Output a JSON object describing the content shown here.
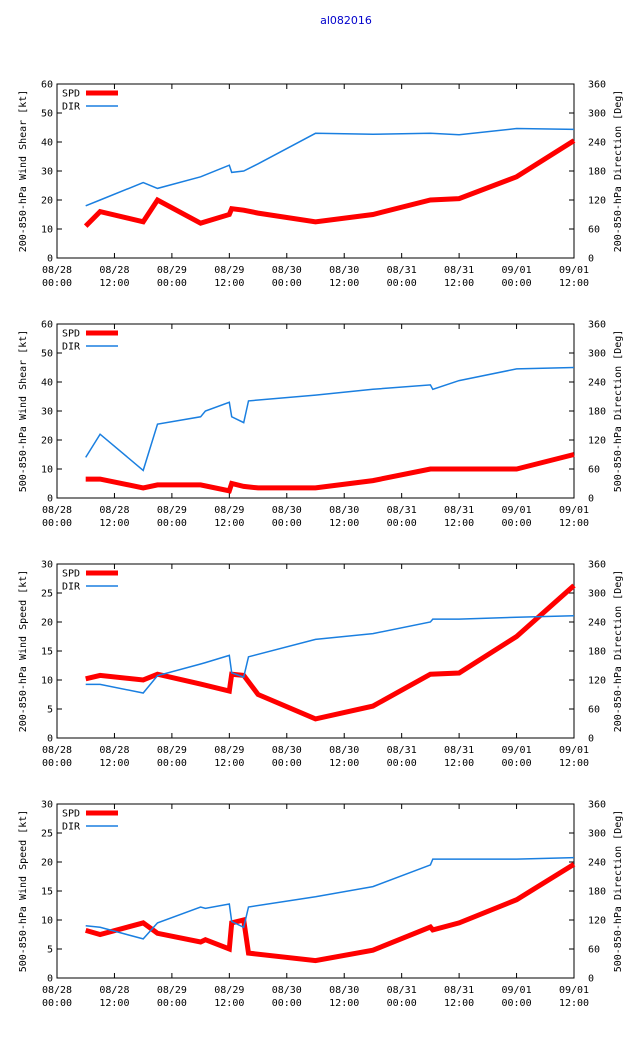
{
  "title": "al082016",
  "x_tick_labels": [
    {
      "date": "08/28",
      "time": "00:00"
    },
    {
      "date": "08/28",
      "time": "12:00"
    },
    {
      "date": "08/29",
      "time": "00:00"
    },
    {
      "date": "08/29",
      "time": "12:00"
    },
    {
      "date": "08/30",
      "time": "00:00"
    },
    {
      "date": "08/30",
      "time": "12:00"
    },
    {
      "date": "08/31",
      "time": "00:00"
    },
    {
      "date": "08/31",
      "time": "12:00"
    },
    {
      "date": "09/01",
      "time": "00:00"
    },
    {
      "date": "09/01",
      "time": "12:00"
    }
  ],
  "colors": {
    "spd": "#ff0000",
    "dir": "#1a7fe0",
    "title": "#0000cc"
  },
  "chart_data": [
    {
      "type": "line",
      "ylabel": "200-850-hPa Wind Shear [kt]",
      "y2label": "200-850-hPa Direction [Deg]",
      "ylim": [
        0,
        60
      ],
      "yticks": [
        0,
        10,
        20,
        30,
        40,
        50,
        60
      ],
      "y2lim": [
        0,
        360
      ],
      "y2ticks": [
        0,
        60,
        120,
        180,
        240,
        300,
        360
      ],
      "xlim_hours": [
        0,
        108
      ],
      "legend": [
        "SPD",
        "DIR"
      ],
      "series": [
        {
          "name": "SPD",
          "axis": "left",
          "x": [
            6,
            9,
            18,
            21,
            30,
            36,
            36.5,
            39,
            42,
            54,
            66,
            78,
            84,
            96,
            108
          ],
          "y": [
            11,
            16,
            12.5,
            20,
            12,
            15,
            17,
            16.5,
            15.5,
            12.5,
            15,
            20,
            20.5,
            28,
            40.5
          ]
        },
        {
          "name": "DIR",
          "axis": "right",
          "x": [
            6,
            9,
            18,
            21,
            30,
            36,
            36.5,
            39,
            42,
            54,
            66,
            78,
            84,
            96,
            108
          ],
          "y": [
            108,
            120,
            156,
            144,
            168,
            192,
            177,
            180,
            195,
            258,
            256,
            258,
            255,
            268,
            266
          ]
        }
      ]
    },
    {
      "type": "line",
      "ylabel": "500-850-hPa Wind Shear [kt]",
      "y2label": "500-850-hPa Direction [Deg]",
      "ylim": [
        0,
        60
      ],
      "yticks": [
        0,
        10,
        20,
        30,
        40,
        50,
        60
      ],
      "y2lim": [
        0,
        360
      ],
      "y2ticks": [
        0,
        60,
        120,
        180,
        240,
        300,
        360
      ],
      "xlim_hours": [
        0,
        108
      ],
      "legend": [
        "SPD",
        "DIR"
      ],
      "series": [
        {
          "name": "SPD",
          "axis": "left",
          "x": [
            6,
            9,
            18,
            21,
            30,
            36,
            36.5,
            39,
            42,
            54,
            66,
            78,
            84,
            96,
            108
          ],
          "y": [
            6.5,
            6.5,
            3.5,
            4.5,
            4.5,
            2.5,
            5,
            4,
            3.5,
            3.5,
            6,
            10,
            10,
            10,
            15
          ]
        },
        {
          "name": "DIR",
          "axis": "right",
          "x": [
            6,
            9,
            18,
            21,
            30,
            31,
            36,
            36.5,
            39,
            40,
            54,
            66,
            78,
            78.5,
            84,
            96,
            108
          ],
          "y": [
            84,
            132,
            57,
            153,
            168,
            180,
            198,
            168,
            156,
            201,
            213,
            225,
            234,
            225,
            243,
            267,
            270
          ]
        }
      ]
    },
    {
      "type": "line",
      "ylabel": "200-850-hPa Wind Speed [kt]",
      "y2label": "200-850-hPa Direction [Deg]",
      "ylim": [
        0,
        30
      ],
      "yticks": [
        0,
        5,
        10,
        15,
        20,
        25,
        30
      ],
      "y2lim": [
        0,
        360
      ],
      "y2ticks": [
        0,
        60,
        120,
        180,
        240,
        300,
        360
      ],
      "xlim_hours": [
        0,
        108
      ],
      "legend": [
        "SPD",
        "DIR"
      ],
      "series": [
        {
          "name": "SPD",
          "axis": "left",
          "x": [
            6,
            9,
            18,
            21,
            30,
            36,
            36.5,
            39,
            42,
            54,
            66,
            78,
            84,
            96,
            108
          ],
          "y": [
            10.2,
            10.8,
            10.0,
            11.0,
            9.3,
            8.1,
            11.0,
            10.8,
            7.5,
            3.3,
            5.5,
            11.0,
            11.2,
            17.5,
            26.3
          ]
        },
        {
          "name": "DIR",
          "axis": "right",
          "x": [
            6,
            9,
            18,
            21,
            30,
            31,
            36,
            36.5,
            39,
            40,
            54,
            66,
            78,
            78.5,
            84,
            96,
            108
          ],
          "y": [
            111,
            111,
            93,
            129,
            153,
            156,
            171,
            135,
            126,
            168,
            204,
            216,
            240,
            246,
            246,
            250,
            253
          ]
        }
      ]
    },
    {
      "type": "line",
      "ylabel": "500-850-hPa Wind Speed [kt]",
      "y2label": "500-850-hPa Direction [Deg]",
      "ylim": [
        0,
        30
      ],
      "yticks": [
        0,
        5,
        10,
        15,
        20,
        25,
        30
      ],
      "y2lim": [
        0,
        360
      ],
      "y2ticks": [
        0,
        60,
        120,
        180,
        240,
        300,
        360
      ],
      "xlim_hours": [
        0,
        108
      ],
      "legend": [
        "SPD",
        "DIR"
      ],
      "series": [
        {
          "name": "SPD",
          "axis": "left",
          "x": [
            6,
            9,
            18,
            21,
            30,
            31,
            36,
            36.5,
            39,
            40,
            54,
            66,
            78,
            78.5,
            84,
            96,
            108
          ],
          "y": [
            8.2,
            7.5,
            9.5,
            7.7,
            6.2,
            6.6,
            5.0,
            9.5,
            10.0,
            4.3,
            3.0,
            4.8,
            8.8,
            8.3,
            9.5,
            13.5,
            19.6
          ]
        },
        {
          "name": "DIR",
          "axis": "right",
          "x": [
            6,
            9,
            18,
            21,
            30,
            31,
            36,
            36.5,
            39,
            40,
            54,
            66,
            78,
            78.5,
            84,
            96,
            108
          ],
          "y": [
            108,
            105,
            81,
            114,
            147,
            144,
            153,
            117,
            105,
            147,
            168,
            189,
            234,
            246,
            246,
            246,
            249
          ]
        }
      ]
    }
  ]
}
